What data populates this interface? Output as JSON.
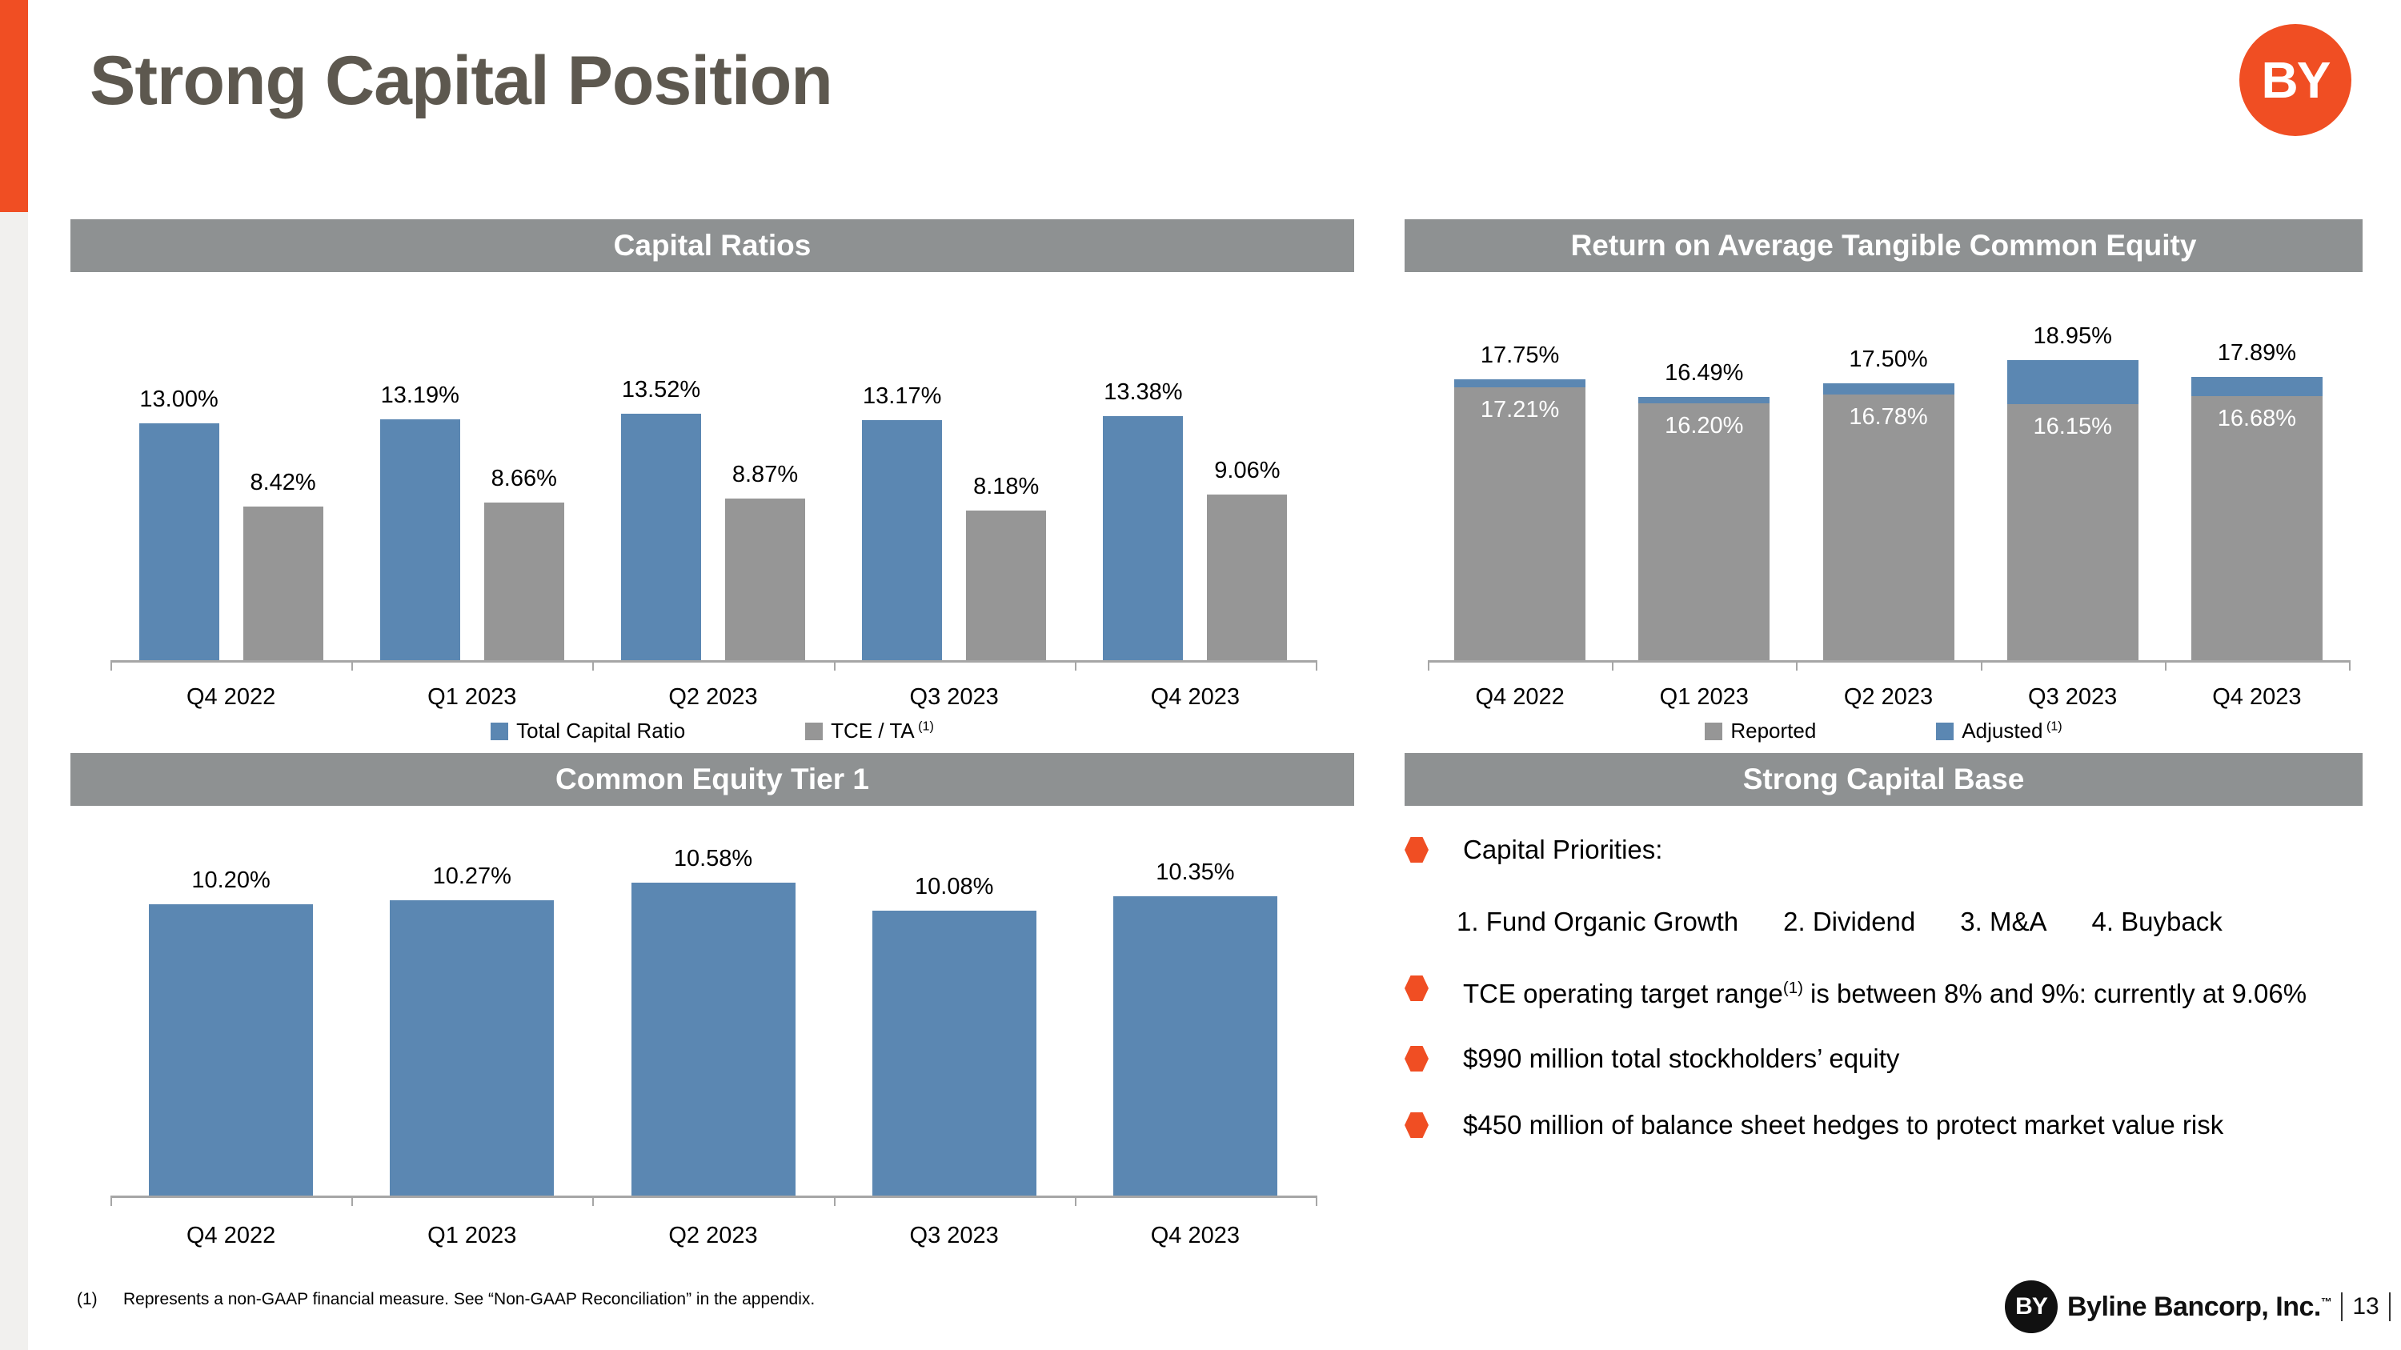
{
  "slide": {
    "title": "Strong Capital Position",
    "logo_monogram": "BY"
  },
  "colors": {
    "accent_orange": "#F04E23",
    "bar_blue": "#5B87B2",
    "bar_gray": "#969696",
    "header_gray": "#8E9192",
    "title_gray": "#5D584F",
    "axis_gray": "#A6A6A6"
  },
  "chart_data": [
    {
      "id": "capital_ratios",
      "type": "bar",
      "title": "Capital Ratios",
      "categories": [
        "Q4 2022",
        "Q1 2023",
        "Q2 2023",
        "Q3 2023",
        "Q4 2023"
      ],
      "series": [
        {
          "name": "Total Capital Ratio",
          "color_key": "blue",
          "values": [
            13.0,
            13.19,
            13.52,
            13.17,
            13.38
          ],
          "labels": [
            "13.00%",
            "13.19%",
            "13.52%",
            "13.17%",
            "13.38%"
          ]
        },
        {
          "name": "TCE / TA",
          "superscript": "(1)",
          "color_key": "gray",
          "values": [
            8.42,
            8.66,
            8.87,
            8.18,
            9.06
          ],
          "labels": [
            "8.42%",
            "8.66%",
            "8.87%",
            "8.18%",
            "9.06%"
          ]
        }
      ],
      "ylim": [
        0,
        15
      ],
      "grid": false,
      "legend_position": "bottom"
    },
    {
      "id": "roatce",
      "type": "stacked-bar",
      "title": "Return on Average Tangible Common Equity",
      "categories": [
        "Q4 2022",
        "Q1 2023",
        "Q2 2023",
        "Q3 2023",
        "Q4 2023"
      ],
      "series": [
        {
          "name": "Reported",
          "color_key": "gray",
          "values": [
            17.21,
            16.2,
            16.78,
            16.15,
            16.68
          ],
          "labels": [
            "17.21%",
            "16.20%",
            "16.78%",
            "16.15%",
            "16.68%"
          ]
        },
        {
          "name": "Adjusted",
          "superscript": "(1)",
          "color_key": "blue",
          "values": [
            17.75,
            16.49,
            17.5,
            18.95,
            17.89
          ],
          "labels": [
            "17.75%",
            "16.49%",
            "17.50%",
            "18.95%",
            "17.89%"
          ]
        }
      ],
      "ylim": [
        0,
        20
      ],
      "grid": false,
      "legend_position": "bottom"
    },
    {
      "id": "cet1",
      "type": "bar",
      "title": "Common Equity Tier 1",
      "categories": [
        "Q4 2022",
        "Q1 2023",
        "Q2 2023",
        "Q3 2023",
        "Q4 2023"
      ],
      "series": [
        {
          "name": "Common Equity Tier 1",
          "color_key": "blue",
          "values": [
            10.2,
            10.27,
            10.58,
            10.08,
            10.35
          ],
          "labels": [
            "10.20%",
            "10.27%",
            "10.58%",
            "10.08%",
            "10.35%"
          ]
        }
      ],
      "ylim": [
        5,
        11
      ],
      "grid": false,
      "legend_position": "none"
    }
  ],
  "strong_capital_base": {
    "title": "Strong Capital Base",
    "bullet1": {
      "text": "Capital Priorities:"
    },
    "priorities": [
      "1. Fund Organic Growth",
      "2. Dividend",
      "3. M&A",
      "4. Buyback"
    ],
    "bullet2": {
      "before": "TCE operating target range",
      "sup": "(1)",
      "after": " is between 8% and 9%: currently at 9.06%"
    },
    "bullet3": {
      "text": "$990 million total stockholders’ equity"
    },
    "bullet4": {
      "text": "$450 million of balance sheet hedges to protect market value risk"
    }
  },
  "footnote": {
    "marker": "(1)",
    "text": "Represents a non-GAAP financial measure.  See “Non-GAAP Reconciliation” in the appendix."
  },
  "footer": {
    "logo_monogram": "BY",
    "company": "Byline Bancorp, Inc.",
    "trademark": "™",
    "page": "13"
  }
}
